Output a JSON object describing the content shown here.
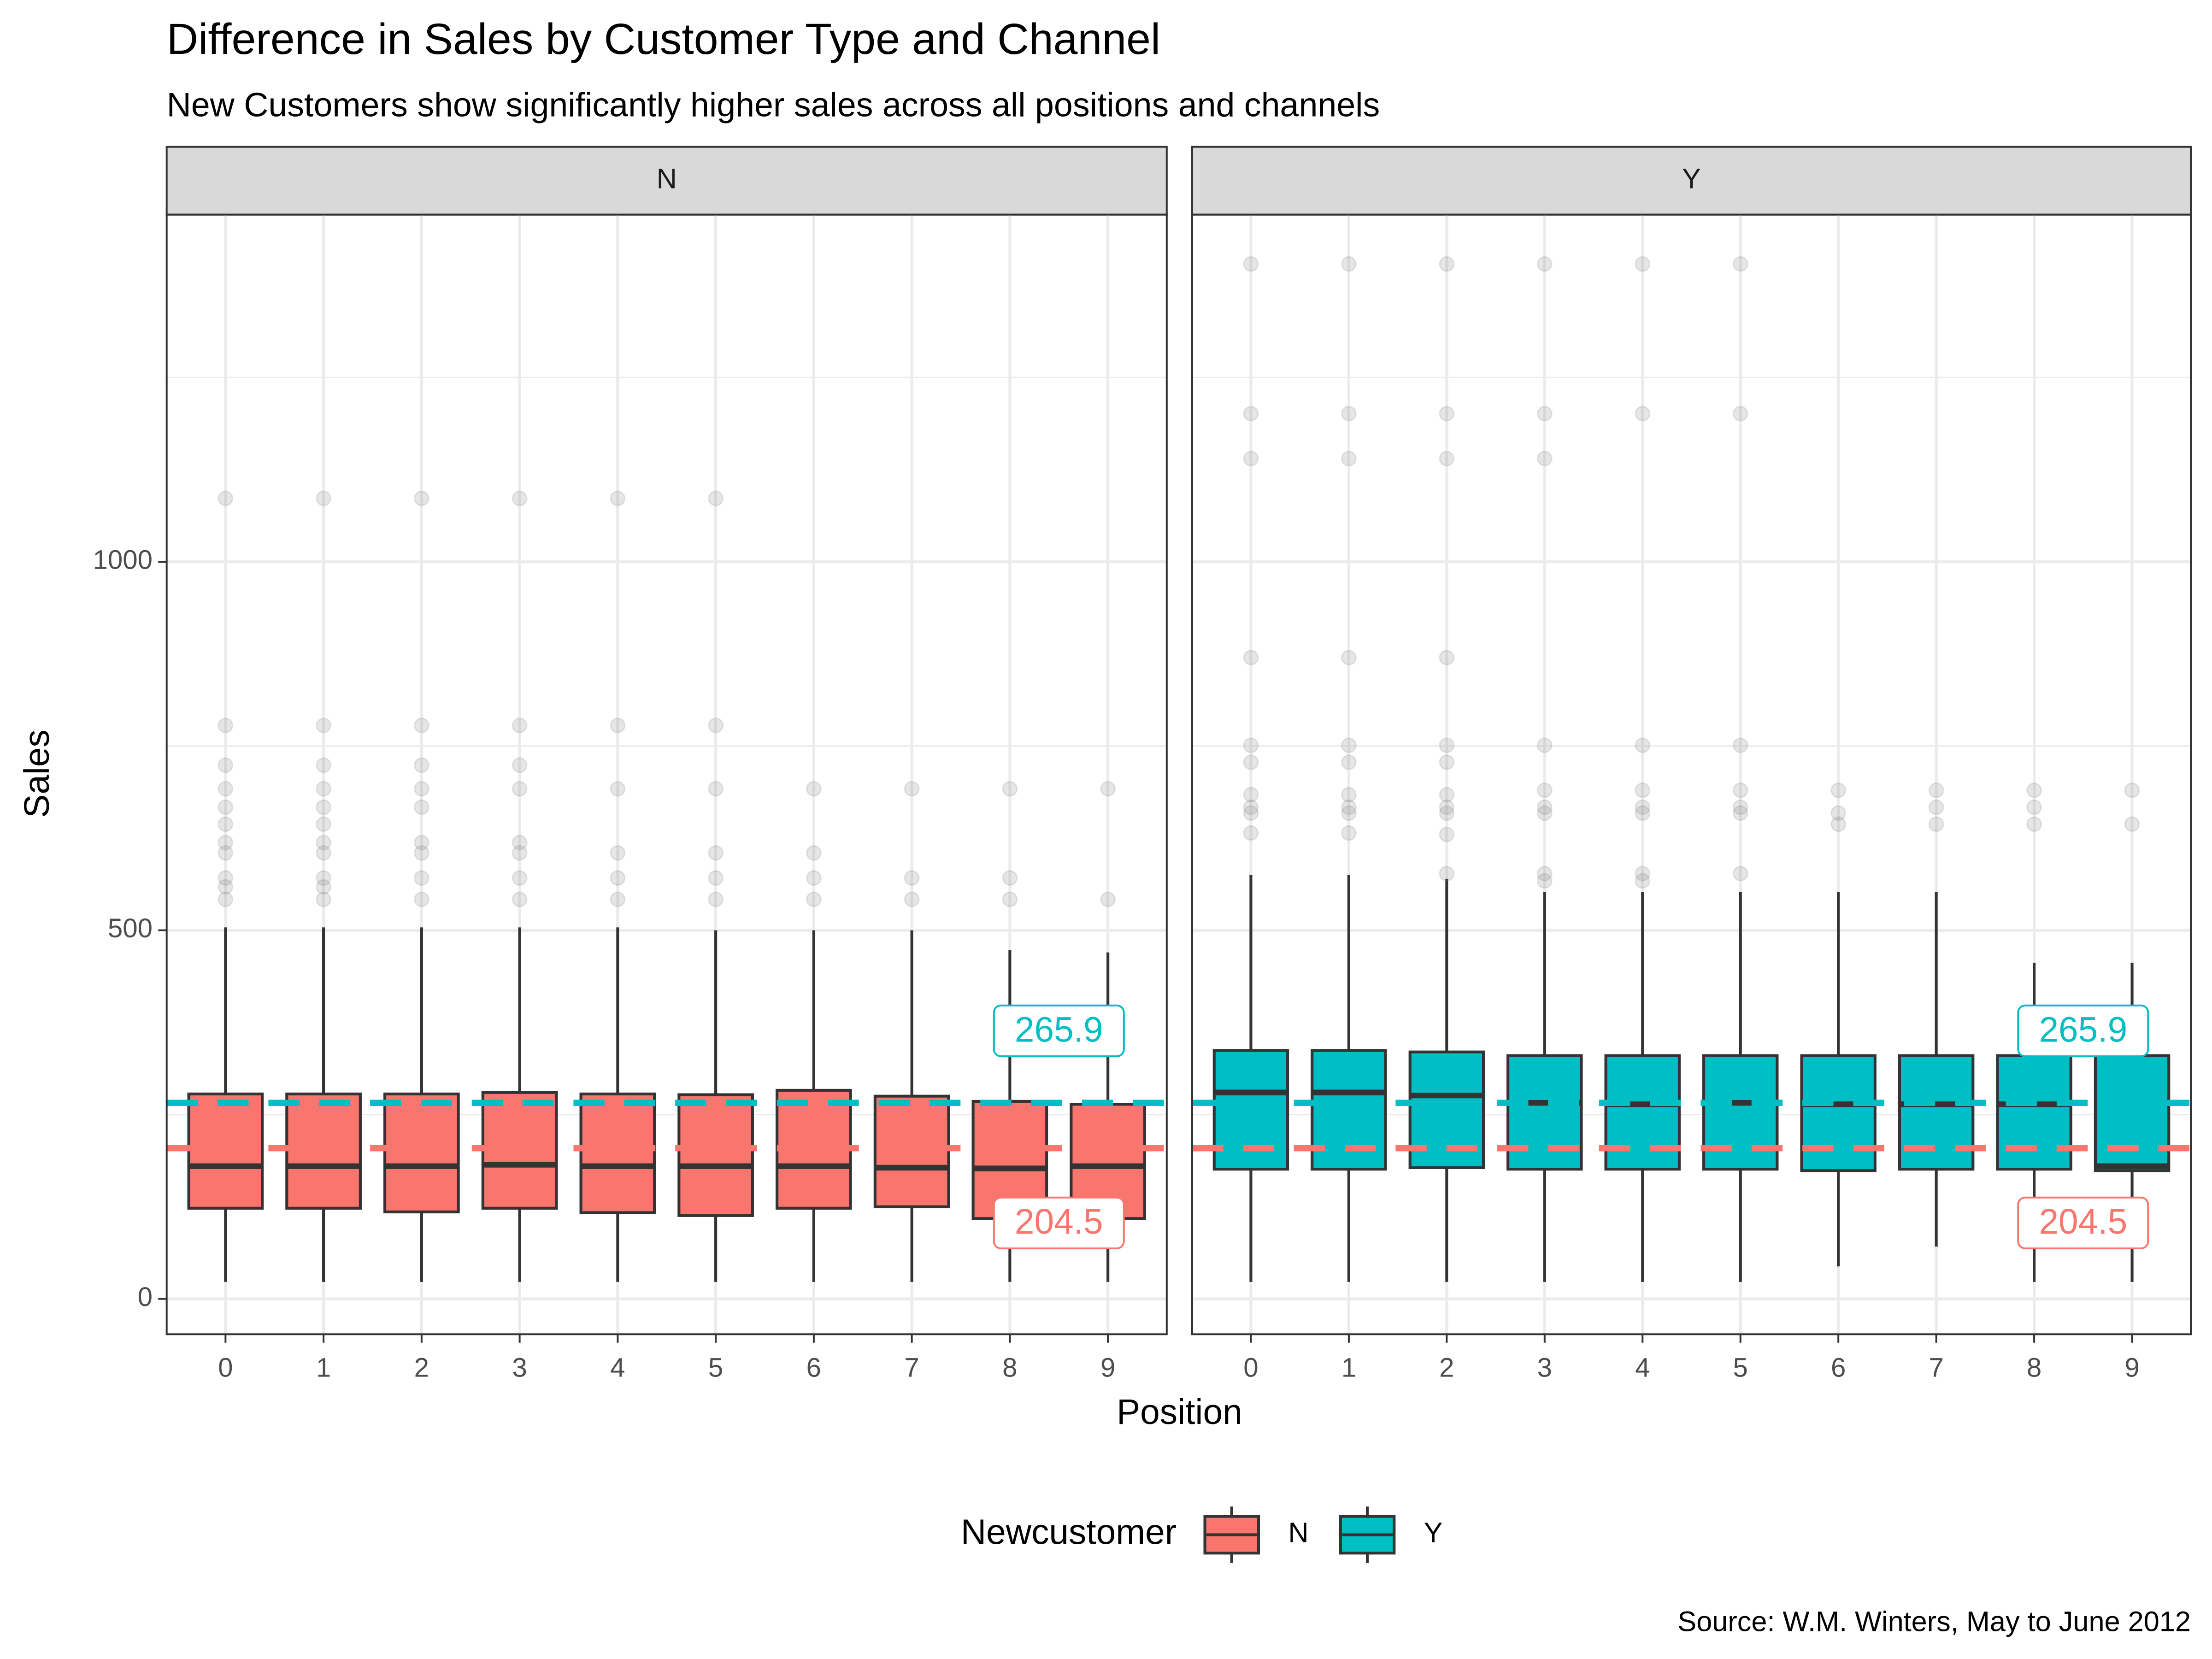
{
  "chart_data": {
    "type": "boxplot",
    "title": "Difference in Sales by Customer Type and Channel",
    "subtitle": "New Customers show significantly higher sales across all positions and channels",
    "caption": "Source: W.M. Winters, May to June 2012",
    "x_label": "Position",
    "y_label": "Sales",
    "legend_title": "Newcustomer",
    "legend_position": "bottom",
    "grid": true,
    "ylim": [
      -48,
      1471
    ],
    "yticks": [
      0,
      500,
      1000
    ],
    "minor_yticks": [
      250,
      750,
      1250
    ],
    "categories": [
      "0",
      "1",
      "2",
      "3",
      "4",
      "5",
      "6",
      "7",
      "8",
      "9"
    ],
    "facets": [
      {
        "name": "N",
        "color": "#f8766d",
        "boxes": [
          {
            "low": 23,
            "q1": 123,
            "median": 180,
            "q3": 278,
            "high": 504,
            "outliers": [
              1086,
              778,
              724,
              692,
              667,
              644,
              619,
              605,
              571,
              559,
              542
            ]
          },
          {
            "low": 23,
            "q1": 123,
            "median": 180,
            "q3": 278,
            "high": 504,
            "outliers": [
              1086,
              778,
              724,
              692,
              667,
              644,
              619,
              605,
              571,
              559,
              542
            ]
          },
          {
            "low": 23,
            "q1": 118,
            "median": 180,
            "q3": 278,
            "high": 504,
            "outliers": [
              1086,
              778,
              724,
              692,
              667,
              619,
              605,
              571,
              542
            ]
          },
          {
            "low": 23,
            "q1": 123,
            "median": 182,
            "q3": 280,
            "high": 504,
            "outliers": [
              1086,
              778,
              724,
              692,
              619,
              605,
              571,
              542
            ]
          },
          {
            "low": 23,
            "q1": 117,
            "median": 180,
            "q3": 278,
            "high": 504,
            "outliers": [
              1086,
              778,
              692,
              605,
              571,
              542
            ]
          },
          {
            "low": 23,
            "q1": 113,
            "median": 180,
            "q3": 277,
            "high": 500,
            "outliers": [
              1086,
              778,
              692,
              605,
              571,
              542
            ]
          },
          {
            "low": 23,
            "q1": 123,
            "median": 180,
            "q3": 283,
            "high": 500,
            "outliers": [
              692,
              605,
              571,
              542
            ]
          },
          {
            "low": 23,
            "q1": 125,
            "median": 178,
            "q3": 275,
            "high": 500,
            "outliers": [
              692,
              571,
              542
            ]
          },
          {
            "low": 23,
            "q1": 109,
            "median": 177,
            "q3": 268,
            "high": 473,
            "outliers": [
              692,
              571,
              542
            ]
          },
          {
            "low": 23,
            "q1": 109,
            "median": 180,
            "q3": 264,
            "high": 470,
            "outliers": [
              692,
              542
            ]
          }
        ]
      },
      {
        "name": "Y",
        "color": "#00bfc4",
        "boxes": [
          {
            "low": 23,
            "q1": 176,
            "median": 280,
            "q3": 337,
            "high": 575,
            "outliers": [
              1404,
              1201,
              1140,
              870,
              751,
              728,
              684,
              667,
              659,
              632
            ]
          },
          {
            "low": 23,
            "q1": 176,
            "median": 280,
            "q3": 337,
            "high": 575,
            "outliers": [
              1404,
              1201,
              1140,
              870,
              751,
              728,
              684,
              667,
              659,
              632
            ]
          },
          {
            "low": 23,
            "q1": 178,
            "median": 276,
            "q3": 335,
            "high": 570,
            "outliers": [
              1404,
              1201,
              1140,
              870,
              751,
              728,
              684,
              667,
              659,
              630,
              577
            ]
          },
          {
            "low": 23,
            "q1": 176,
            "median": 266,
            "q3": 330,
            "high": 552,
            "outliers": [
              1404,
              1201,
              1140,
              751,
              690,
              667,
              659,
              577,
              567
            ]
          },
          {
            "low": 23,
            "q1": 176,
            "median": 264,
            "q3": 330,
            "high": 552,
            "outliers": [
              1404,
              1201,
              751,
              690,
              667,
              659,
              577,
              567
            ]
          },
          {
            "low": 23,
            "q1": 176,
            "median": 266,
            "q3": 330,
            "high": 552,
            "outliers": [
              1404,
              1201,
              751,
              690,
              667,
              659,
              577
            ]
          },
          {
            "low": 44,
            "q1": 174,
            "median": 264,
            "q3": 330,
            "high": 552,
            "outliers": [
              690,
              659,
              644
            ]
          },
          {
            "low": 71,
            "q1": 176,
            "median": 264,
            "q3": 330,
            "high": 552,
            "outliers": [
              690,
              667,
              644
            ]
          },
          {
            "low": 23,
            "q1": 176,
            "median": 264,
            "q3": 330,
            "high": 456,
            "outliers": [
              690,
              667,
              644
            ]
          },
          {
            "low": 23,
            "q1": 174,
            "median": 180,
            "q3": 330,
            "high": 456,
            "outliers": [
              690,
              644
            ]
          }
        ]
      }
    ],
    "mean_lines": [
      {
        "value": 265.9,
        "color": "#00bfc4"
      },
      {
        "value": 204.5,
        "color": "#f8766d"
      }
    ]
  }
}
